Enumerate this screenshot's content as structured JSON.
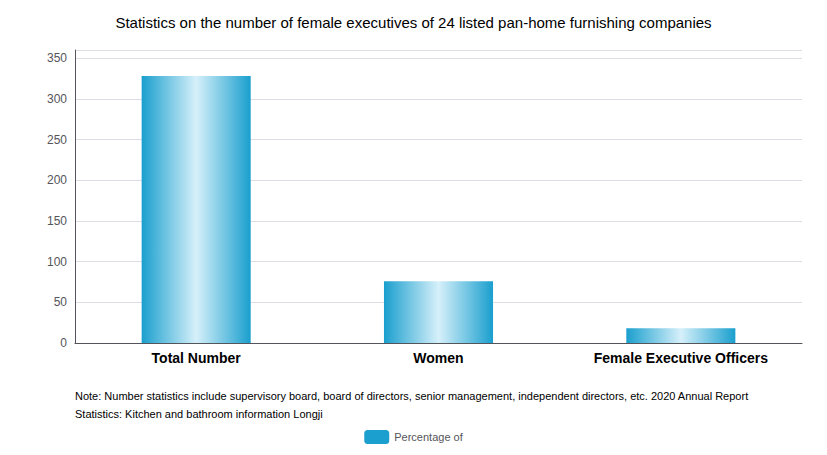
{
  "chart_data": {
    "type": "bar",
    "title": "Statistics on the number of female executives of 24 listed pan-home furnishing companies",
    "categories": [
      "Total Number",
      "Women",
      "Female Executive Officers"
    ],
    "series": [
      {
        "name": "Percentage of",
        "color": "#1a9fce",
        "values": [
          328,
          76,
          18
        ]
      }
    ],
    "ylim": [
      0,
      360
    ],
    "yticks": [
      0,
      50,
      100,
      150,
      200,
      250,
      300,
      350
    ],
    "grid": true,
    "legend": "bottom",
    "annotations": [
      "Note: Number statistics include supervisory board, board of directors, senior management, independent directors, etc. 2020 Annual Report",
      "Statistics: Kitchen and bathroom information Longji"
    ]
  }
}
